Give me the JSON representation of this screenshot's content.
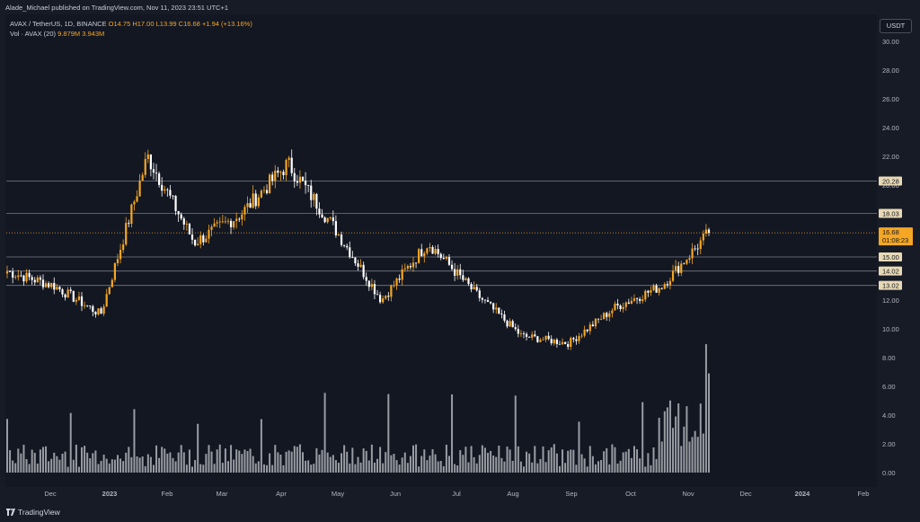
{
  "publisher": "Alade_Michael published on TradingView.com, Nov 11, 2023 23:51 UTC+1",
  "legend": {
    "symbol": "AVAX / TetherUS, 1D, BINANCE",
    "open": "O14.75",
    "high": "H17.00",
    "low": "L13.99",
    "close": "C16.68",
    "change": "+1.94 (+13.16%)",
    "vol_label": "Vol · AVAX (20)",
    "vol_value": "9.879M",
    "vol_ma": "3.943M"
  },
  "currency": "USDT",
  "brand": "TradingView",
  "price_badge": {
    "price": "16.68",
    "countdown": "01:08:23"
  },
  "colors": {
    "up": "#f5a623",
    "down": "#ffffff",
    "background": "#131722",
    "level_line": "#787b86",
    "volume": "#c7c9cf",
    "price_line": "#f5a623"
  },
  "chart_data": {
    "type": "candlestick",
    "yticks": [
      "30.00",
      "28.00",
      "26.00",
      "24.00",
      "22.00",
      "20.00",
      "18.00",
      "16.00",
      "14.00",
      "12.00",
      "10.00",
      "8.00",
      "6.00",
      "4.00",
      "2.00",
      "0.00"
    ],
    "volume_unit": "M",
    "xticks": [
      "Dec",
      "2023",
      "Feb",
      "Mar",
      "Apr",
      "May",
      "Jun",
      "Jul",
      "Aug",
      "Sep",
      "Oct",
      "Nov",
      "Dec",
      "2024",
      "Feb"
    ],
    "levels": [
      "20.28",
      "18.03",
      "15.00",
      "14.02",
      "13.02"
    ],
    "close_path": [
      {
        "x": "Nov",
        "y": 14.0
      },
      {
        "x": "Dec",
        "y": 13.0
      },
      {
        "x": "2023",
        "y": 11.0
      },
      {
        "x": "Feb",
        "y": 22.0
      },
      {
        "x": "Mar",
        "y": 16.0
      },
      {
        "x": "Apr",
        "y": 18.0
      },
      {
        "x": "Apr mid",
        "y": 21.5
      },
      {
        "x": "May",
        "y": 17.0
      },
      {
        "x": "Jun",
        "y": 12.0
      },
      {
        "x": "Jul",
        "y": 16.0
      },
      {
        "x": "Aug",
        "y": 12.5
      },
      {
        "x": "Sep",
        "y": 9.5
      },
      {
        "x": "Oct",
        "y": 9.0
      },
      {
        "x": "Oct",
        "y": 11.5
      },
      {
        "x": "Nov",
        "y": 13.0
      },
      {
        "x": "Nov 11",
        "y": 16.68
      }
    ]
  }
}
